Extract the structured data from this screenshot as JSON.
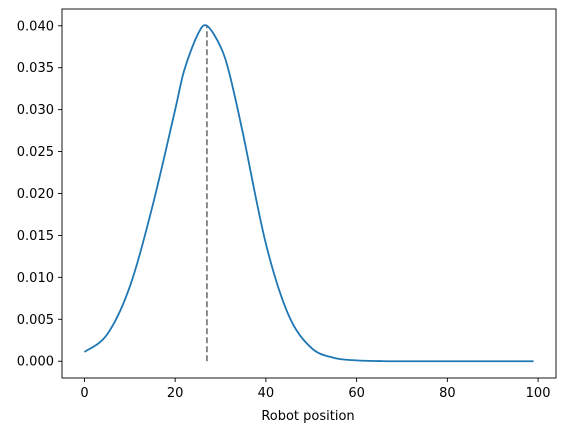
{
  "chart_data": {
    "type": "line",
    "title": "",
    "xlabel": "Robot position",
    "ylabel": "",
    "xlim": [
      -4.95,
      103.95
    ],
    "ylim": [
      -0.002,
      0.042
    ],
    "xticks": [
      0,
      20,
      40,
      60,
      80,
      100
    ],
    "xtick_labels": [
      "0",
      "20",
      "40",
      "60",
      "80",
      "100"
    ],
    "yticks": [
      0.0,
      0.005,
      0.01,
      0.015,
      0.02,
      0.025,
      0.03,
      0.035,
      0.04
    ],
    "ytick_labels": [
      "0.000",
      "0.005",
      "0.010",
      "0.015",
      "0.020",
      "0.025",
      "0.030",
      "0.035",
      "0.040"
    ],
    "grid": false,
    "legend": "none",
    "series": [
      {
        "color": "#1f77b4",
        "x": [
          0,
          5,
          10,
          15,
          20,
          22,
          25,
          27,
          30,
          32,
          35,
          40,
          45,
          50,
          55,
          60,
          65,
          70,
          75,
          80,
          85,
          90,
          95,
          99
        ],
        "values": [
          0.0011,
          0.0032,
          0.0089,
          0.0185,
          0.03,
          0.0347,
          0.039,
          0.04,
          0.0375,
          0.0342,
          0.027,
          0.014,
          0.0055,
          0.0016,
          0.0004,
          0.0001,
          2e-05,
          0.0,
          0.0,
          0.0,
          0.0,
          0.0,
          0.0,
          0.0
        ]
      }
    ],
    "annotations": [
      {
        "type": "vline",
        "x": 27,
        "y0": 0.0,
        "y1": 0.04,
        "color": "#808080",
        "style": "dashed"
      }
    ]
  }
}
